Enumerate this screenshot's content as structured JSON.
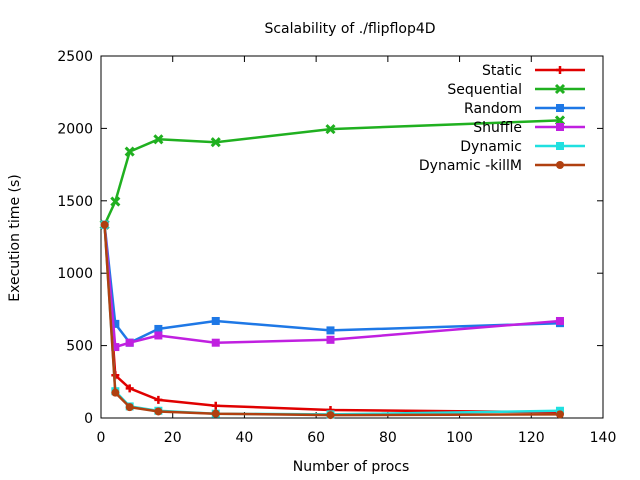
{
  "chart_data": {
    "type": "line",
    "title": "Scalability of ./flipflop4D",
    "xlabel": "Number of procs",
    "ylabel": "Execution time (s)",
    "xlim": [
      0,
      140
    ],
    "ylim": [
      0,
      2500
    ],
    "xticks": [
      0,
      20,
      40,
      60,
      80,
      100,
      120,
      140
    ],
    "yticks": [
      0,
      500,
      1000,
      1500,
      2000,
      2500
    ],
    "grid": false,
    "legend_position": "top-right",
    "x": [
      1,
      4,
      8,
      16,
      32,
      64,
      128
    ],
    "series": [
      {
        "name": "Static",
        "color": "#e00000",
        "marker": "plus",
        "values": [
          1335,
          295,
          205,
          125,
          85,
          55,
          40
        ]
      },
      {
        "name": "Sequential",
        "color": "#20b020",
        "marker": "x",
        "values": [
          1335,
          1495,
          1840,
          1925,
          1905,
          1995,
          2055
        ]
      },
      {
        "name": "Random",
        "color": "#1e78e6",
        "marker": "square",
        "values": [
          1335,
          650,
          520,
          615,
          670,
          605,
          655
        ]
      },
      {
        "name": "Shuffle",
        "color": "#c020e0",
        "marker": "square",
        "values": [
          1335,
          490,
          520,
          570,
          520,
          540,
          670
        ]
      },
      {
        "name": "Dynamic",
        "color": "#20e0e0",
        "marker": "square",
        "values": [
          1335,
          185,
          80,
          50,
          30,
          25,
          50
        ]
      },
      {
        "name": "Dynamic -killM",
        "color": "#b04010",
        "marker": "circle",
        "values": [
          1335,
          175,
          75,
          45,
          30,
          20,
          25
        ]
      }
    ]
  }
}
